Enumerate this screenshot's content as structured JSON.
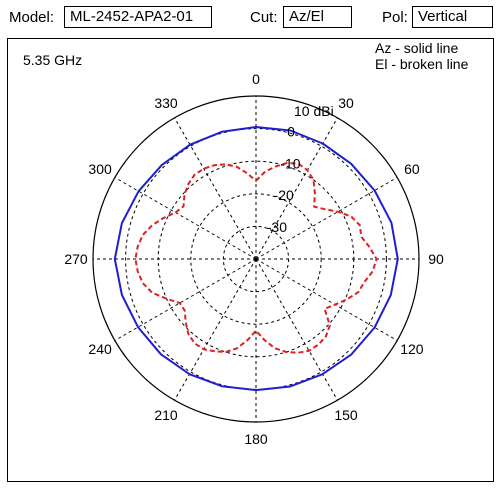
{
  "header": {
    "model_label": "Model:",
    "model_value": "ML-2452-APA2-01",
    "cut_label": "Cut:",
    "cut_value": "Az/El",
    "pol_label": "Pol:",
    "pol_value": "Vertical"
  },
  "chart_data": {
    "type": "polar",
    "frequency_label": "5.35 GHz",
    "legend": [
      "Az - solid line",
      "El - broken line"
    ],
    "angle_ticks": [
      "0",
      "30",
      "60",
      "90",
      "120",
      "150",
      "180",
      "210",
      "240",
      "270",
      "300",
      "330"
    ],
    "radial_ticks": [
      {
        "value": 10,
        "label": "10 dBi"
      },
      {
        "value": 0,
        "label": "0"
      },
      {
        "value": -10,
        "label": "-10"
      },
      {
        "value": -20,
        "label": "-20"
      },
      {
        "value": -30,
        "label": "-30"
      }
    ],
    "radial_range_dbi": [
      -40,
      10
    ],
    "angle_direction": "clockwise from top",
    "grid": true,
    "series": [
      {
        "name": "Az",
        "style": "solid",
        "color": "#1f1fd0",
        "angles_deg": [
          0,
          15,
          30,
          45,
          60,
          75,
          90,
          105,
          120,
          135,
          150,
          165,
          180,
          195,
          210,
          225,
          240,
          255,
          270,
          285,
          300,
          315,
          330,
          345,
          360
        ],
        "gain_dbi": [
          0.5,
          0.8,
          0.9,
          1.3,
          2,
          3,
          3.5,
          2.8,
          2,
          1.4,
          0.8,
          0.5,
          0.2,
          0.4,
          0.8,
          1.3,
          1.8,
          2.6,
          3.3,
          2.6,
          1.6,
          0.8,
          0.5,
          0.4,
          0.5
        ]
      },
      {
        "name": "El",
        "style": "broken",
        "color": "#e02020",
        "angles_deg": [
          0,
          6,
          12,
          18,
          24,
          30,
          36,
          42,
          48,
          54,
          60,
          66,
          72,
          78,
          84,
          90,
          96,
          102,
          108,
          114,
          120,
          126,
          132,
          138,
          144,
          150,
          156,
          162,
          168,
          174,
          180,
          186,
          192,
          198,
          204,
          210,
          216,
          222,
          228,
          234,
          240,
          246,
          252,
          258,
          264,
          270,
          276,
          282,
          288,
          294,
          300,
          306,
          312,
          318,
          324,
          330,
          336,
          342,
          348,
          354,
          360
        ],
        "gain_dbi": [
          -16,
          -13,
          -11,
          -9,
          -8,
          -8.5,
          -10,
          -13,
          -16,
          -14,
          -11,
          -8,
          -6.5,
          -7,
          -5,
          -3,
          -4,
          -6,
          -7,
          -9.5,
          -12,
          -14,
          -9.5,
          -8,
          -7.5,
          -7.5,
          -8.5,
          -10,
          -12,
          -15,
          -18,
          -15,
          -12,
          -10,
          -9,
          -8,
          -8,
          -9,
          -11,
          -13,
          -13,
          -10,
          -6.5,
          -4.5,
          -3.5,
          -3,
          -3.5,
          -4.5,
          -6.5,
          -9,
          -11.5,
          -12.5,
          -10.5,
          -9,
          -8,
          -8,
          -8.5,
          -9.5,
          -11,
          -13.5,
          -16
        ]
      }
    ]
  }
}
